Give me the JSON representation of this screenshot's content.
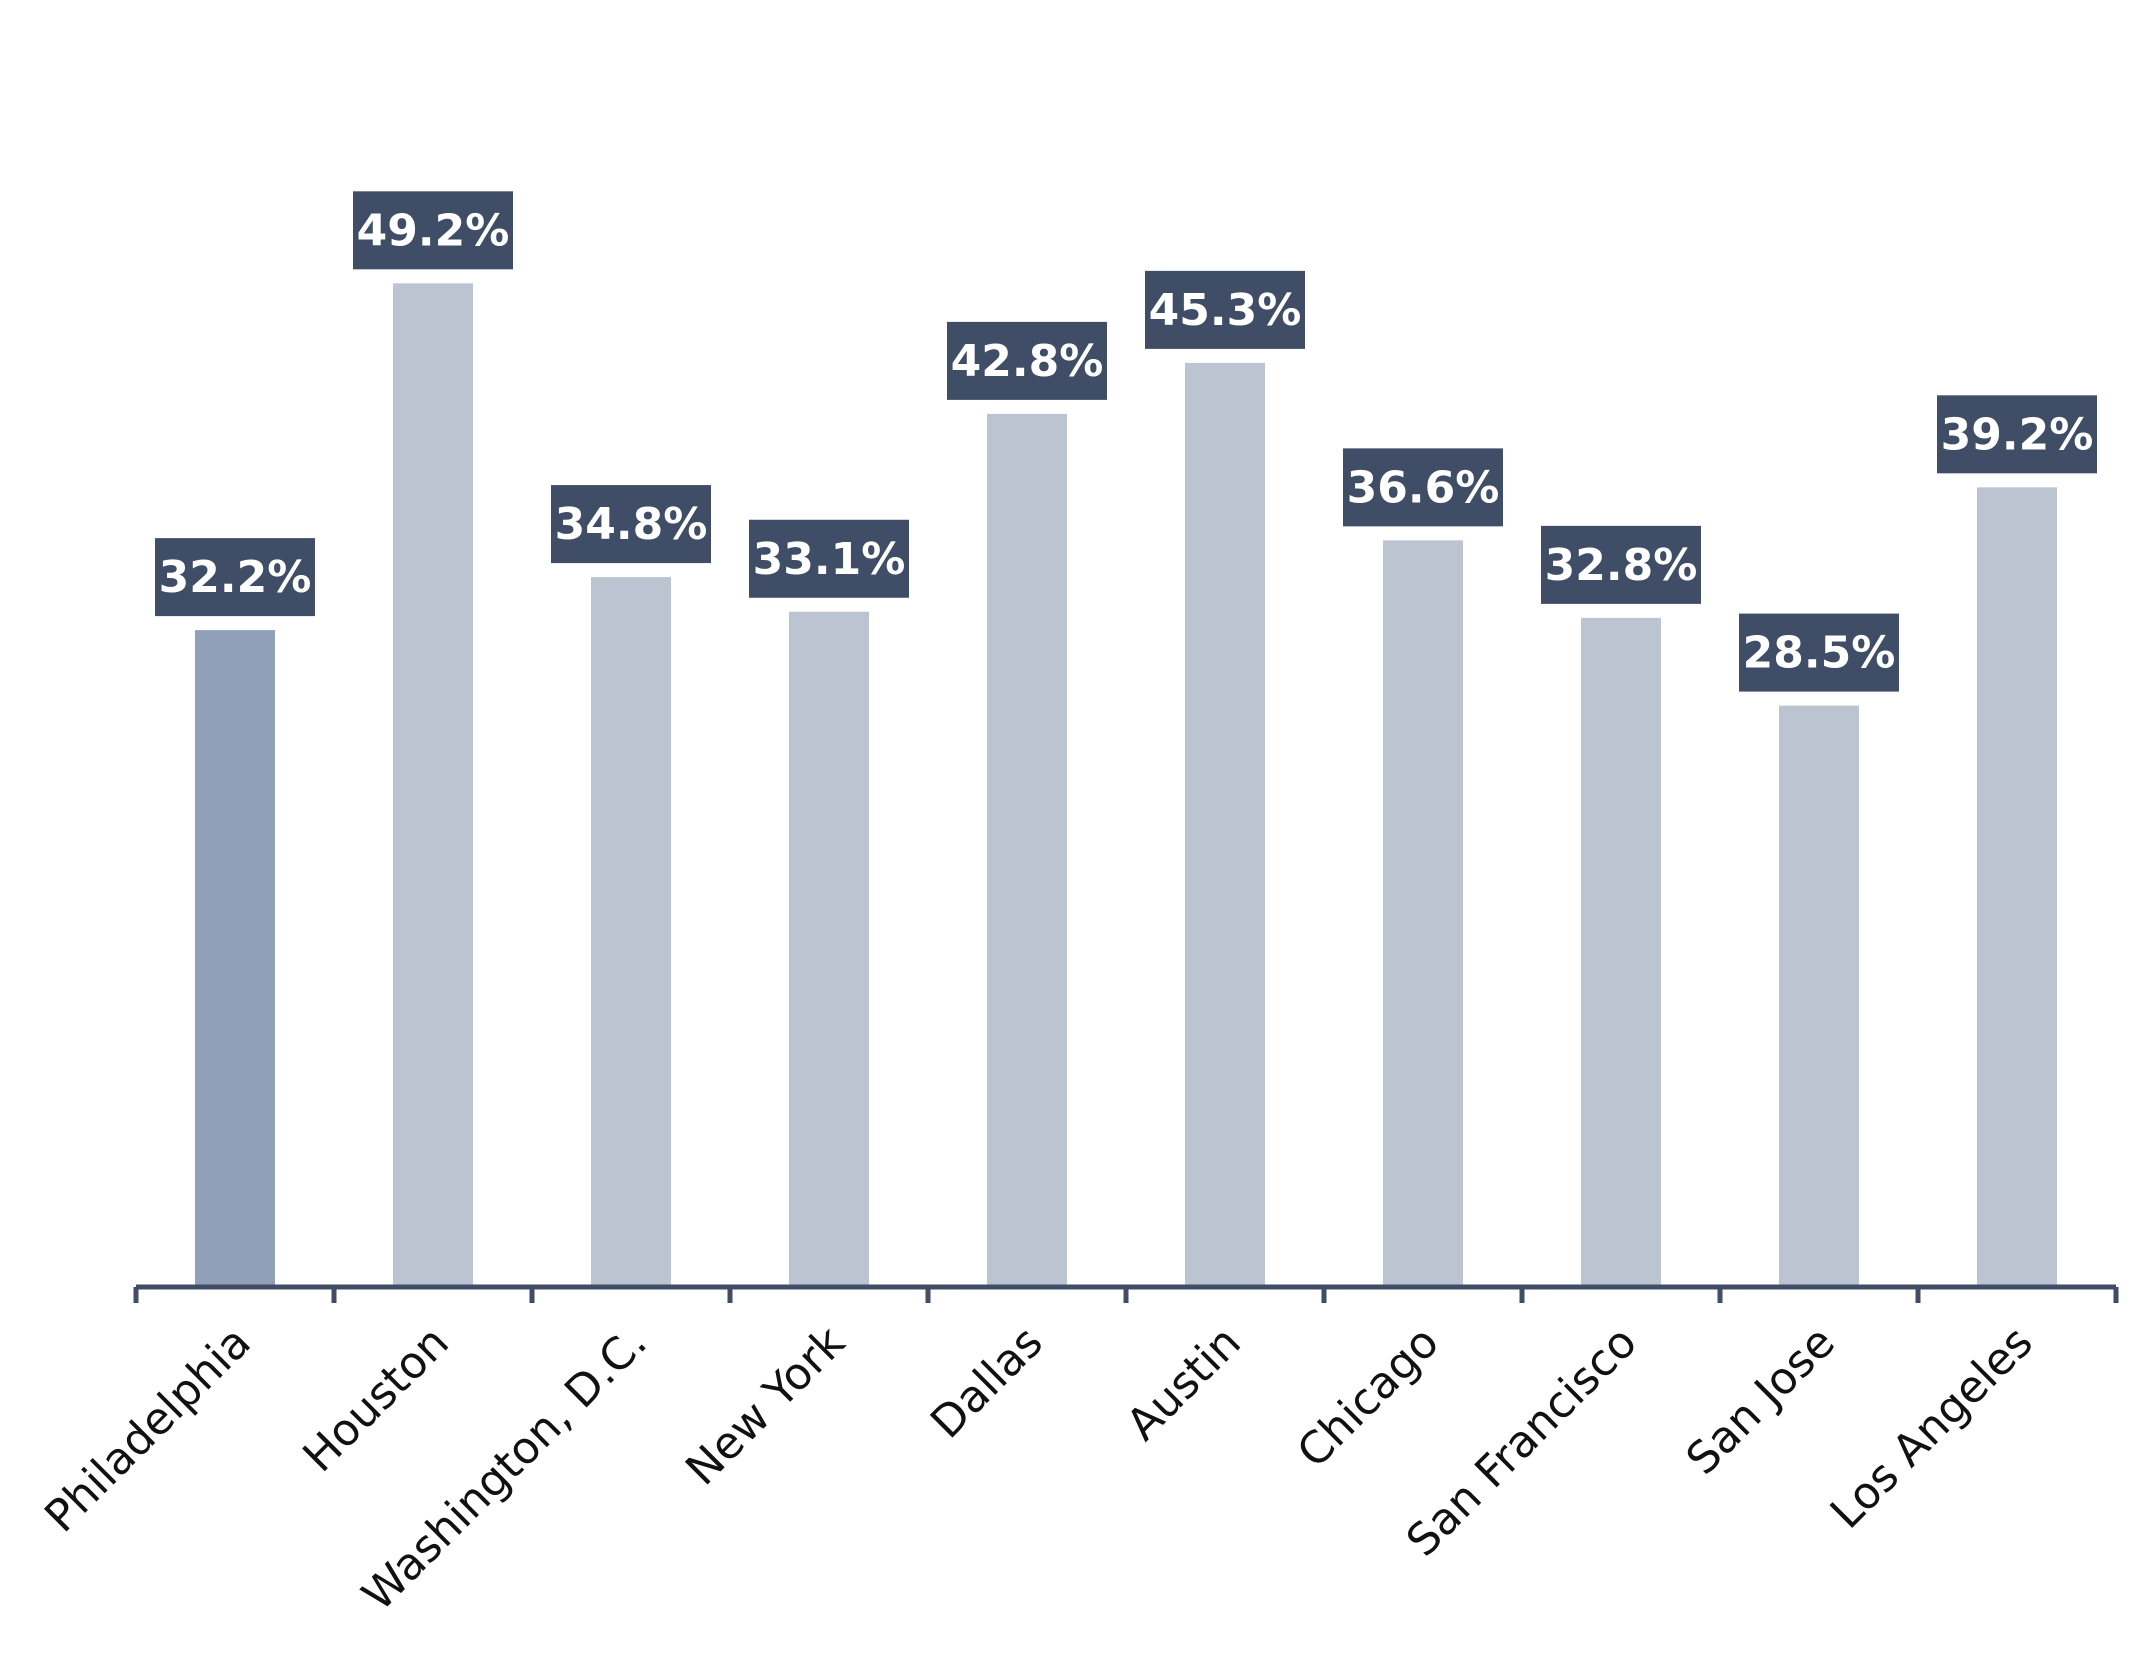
{
  "chart_data": {
    "type": "bar",
    "title": "",
    "xlabel": "",
    "ylabel": "",
    "ylim": [
      0,
      56
    ],
    "grid": false,
    "legend": "none",
    "categories": [
      "Philadelphia",
      "Houston",
      "Washington, D.C.",
      "New York",
      "Dallas",
      "Austin",
      "Chicago",
      "San Francisco",
      "San Jose",
      "Los Angeles"
    ],
    "values": [
      32.2,
      49.2,
      34.8,
      33.1,
      42.8,
      45.3,
      36.6,
      32.8,
      28.5,
      39.2
    ],
    "data_labels": [
      "32.2%",
      "49.2%",
      "34.8%",
      "33.1%",
      "42.8%",
      "45.3%",
      "36.6%",
      "32.8%",
      "28.5%",
      "39.2%"
    ],
    "highlight_index": 0,
    "colors": {
      "bar": "#bcc4d2",
      "bar_highlight": "#90a0b8",
      "label_box": "#3f4e66",
      "label_text": "#ffffff",
      "axis": "#3f4e66"
    }
  }
}
